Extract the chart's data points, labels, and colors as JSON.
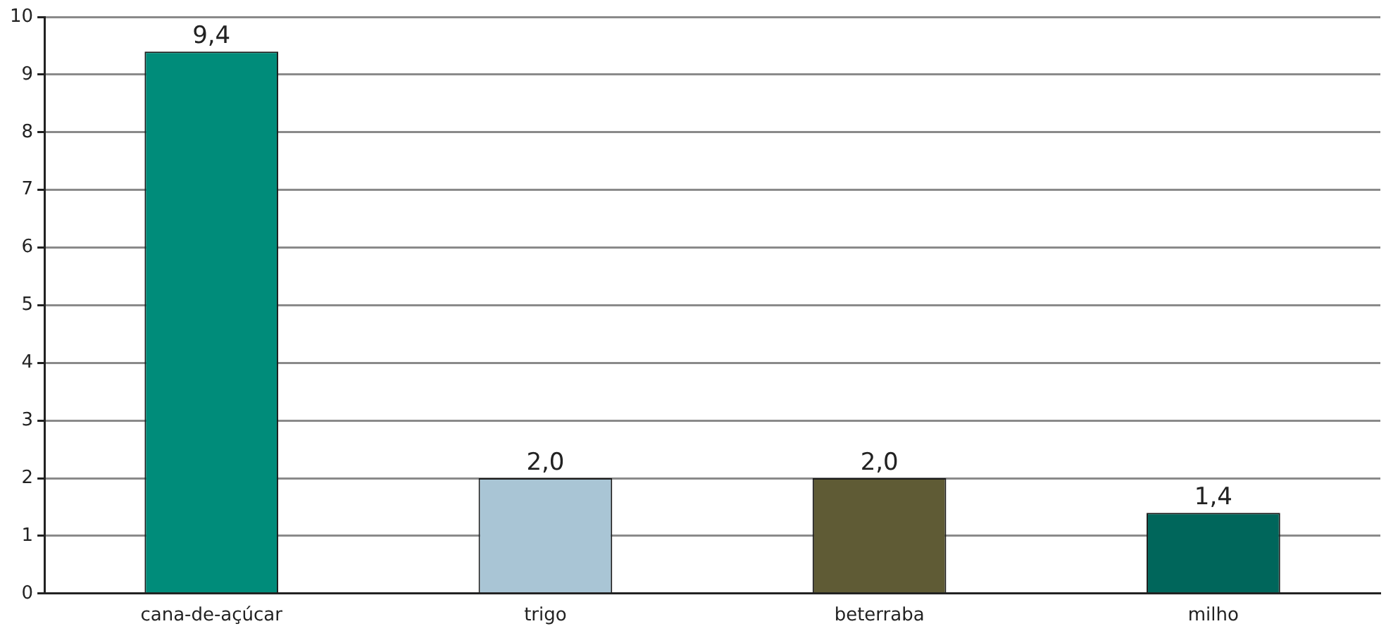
{
  "chart_data": {
    "type": "bar",
    "categories": [
      "cana-de-açúcar",
      "trigo",
      "beterraba",
      "milho"
    ],
    "values": [
      9.4,
      2.0,
      2.0,
      1.4
    ],
    "value_labels": [
      "9,4",
      "2,0",
      "2,0",
      "1,4"
    ],
    "colors": [
      "#008c7a",
      "#a9c5d5",
      "#5f5b35",
      "#00665b"
    ],
    "ylim": [
      0,
      10
    ],
    "yticks": [
      0,
      1,
      2,
      3,
      4,
      5,
      6,
      7,
      8,
      9,
      10
    ],
    "grid": "y",
    "legend": false
  }
}
